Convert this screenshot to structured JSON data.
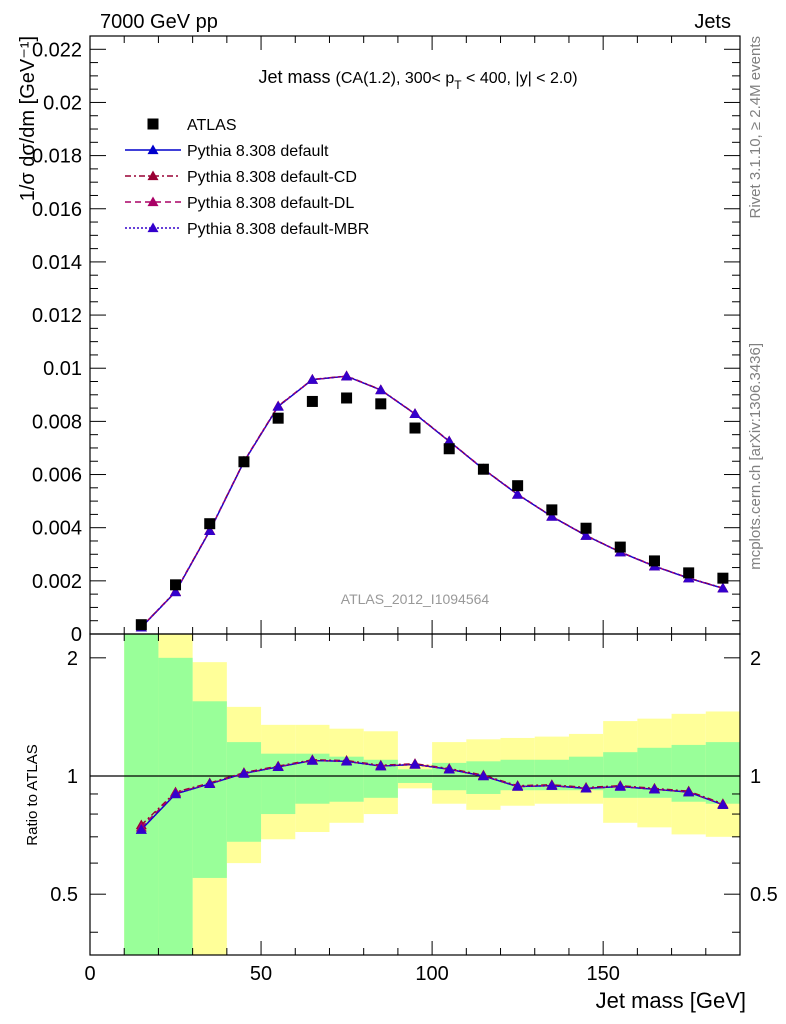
{
  "header": {
    "left": "7000 GeV pp",
    "right": "Jets"
  },
  "side_labels": {
    "rivet": "Rivet 3.1.10, ≥ 2.4M events",
    "source": "mcplots.cern.ch [arXiv:1306.3436]"
  },
  "chart_data": {
    "type": "line",
    "title": {
      "main": "Jet mass",
      "detail_pre": "(CA(1.2), 300< p",
      "detail_sub": "T",
      "detail_post": " < 400, |y| < 2.0)"
    },
    "analysis_id": "ATLAS_2012_I1094564",
    "xlabel": "Jet mass [GeV]",
    "ylabel_main": "1/σ dσ/dm [GeV⁻¹]",
    "ylabel_ratio": "Ratio to ATLAS",
    "xlim": [
      0,
      190
    ],
    "ylim_main": [
      0,
      0.0225
    ],
    "ylim_ratio": [
      0.35,
      2.3
    ],
    "xticks": [
      "0",
      "50",
      "100",
      "150"
    ],
    "yticks_main": [
      "0",
      "0.002",
      "0.004",
      "0.006",
      "0.008",
      "0.01",
      "0.012",
      "0.014",
      "0.016",
      "0.018",
      "0.02",
      "0.022"
    ],
    "yticks_ratio": [
      "0.5",
      "1",
      "2"
    ],
    "legend_position": "top-left",
    "x": [
      15,
      25,
      35,
      45,
      55,
      65,
      75,
      85,
      95,
      105,
      115,
      125,
      135,
      145,
      155,
      165,
      175,
      185
    ],
    "bin_edges": [
      10,
      20,
      30,
      40,
      50,
      60,
      70,
      80,
      90,
      100,
      110,
      120,
      130,
      140,
      150,
      160,
      170,
      180,
      190
    ],
    "data": {
      "name": "ATLAS",
      "values": [
        0.00035,
        0.00185,
        0.00415,
        0.00648,
        0.00812,
        0.00875,
        0.00888,
        0.00866,
        0.00775,
        0.00697,
        0.0062,
        0.00558,
        0.00467,
        0.00398,
        0.00327,
        0.00275,
        0.0023,
        0.0021
      ]
    },
    "series": [
      {
        "name": "Pythia 8.308 default",
        "color": "#0000cc",
        "style": "solid",
        "values": [
          0.00025,
          0.00158,
          0.00388,
          0.00648,
          0.00856,
          0.00957,
          0.0097,
          0.00918,
          0.00828,
          0.00725,
          0.0062,
          0.00525,
          0.00442,
          0.0037,
          0.00308,
          0.00255,
          0.0021,
          0.00172
        ],
        "ratio": [
          0.73,
          0.9,
          0.955,
          1.015,
          1.055,
          1.095,
          1.09,
          1.06,
          1.07,
          1.04,
          1.0,
          0.94,
          0.945,
          0.93,
          0.94,
          0.925,
          0.91,
          0.845
        ]
      },
      {
        "name": "Pythia 8.308 default-CD",
        "color": "#990033",
        "style": "dashdot",
        "values": [
          0.00026,
          0.0016,
          0.0039,
          0.0065,
          0.00858,
          0.00958,
          0.00971,
          0.00919,
          0.00829,
          0.00726,
          0.00621,
          0.00526,
          0.00443,
          0.00371,
          0.00309,
          0.00256,
          0.00211,
          0.00173
        ],
        "ratio": [
          0.75,
          0.91,
          0.96,
          1.02,
          1.06,
          1.1,
          1.095,
          1.065,
          1.075,
          1.045,
          1.005,
          0.945,
          0.95,
          0.935,
          0.945,
          0.93,
          0.915,
          0.85
        ]
      },
      {
        "name": "Pythia 8.308 default-DL",
        "color": "#aa0066",
        "style": "dashed",
        "values": [
          0.00026,
          0.00159,
          0.00389,
          0.00649,
          0.00857,
          0.00957,
          0.0097,
          0.00918,
          0.00828,
          0.00725,
          0.0062,
          0.00525,
          0.00442,
          0.0037,
          0.00308,
          0.00255,
          0.0021,
          0.00172
        ],
        "ratio": [
          0.74,
          0.905,
          0.955,
          1.015,
          1.055,
          1.095,
          1.09,
          1.06,
          1.07,
          1.04,
          1.0,
          0.94,
          0.945,
          0.93,
          0.94,
          0.925,
          0.91,
          0.845
        ]
      },
      {
        "name": "Pythia 8.308 default-MBR",
        "color": "#3300cc",
        "style": "dotted",
        "values": [
          0.00025,
          0.00158,
          0.00388,
          0.00648,
          0.00856,
          0.00957,
          0.0097,
          0.00918,
          0.00828,
          0.00725,
          0.0062,
          0.00525,
          0.00442,
          0.0037,
          0.00308,
          0.00255,
          0.0021,
          0.00172
        ],
        "ratio": [
          0.73,
          0.9,
          0.955,
          1.015,
          1.055,
          1.095,
          1.09,
          1.06,
          1.07,
          1.04,
          1.0,
          0.94,
          0.945,
          0.93,
          0.94,
          0.925,
          0.91,
          0.845
        ]
      }
    ],
    "bands": {
      "stat": {
        "color": "#99ff99",
        "lo": [
          0.35,
          0.35,
          0.55,
          0.68,
          0.8,
          0.85,
          0.86,
          0.88,
          0.96,
          0.92,
          0.9,
          0.92,
          0.92,
          0.92,
          0.88,
          0.88,
          0.86,
          0.85
        ],
        "hi": [
          2.3,
          2.0,
          1.55,
          1.22,
          1.14,
          1.14,
          1.12,
          1.1,
          1.04,
          1.08,
          1.09,
          1.1,
          1.1,
          1.12,
          1.15,
          1.18,
          1.2,
          1.22
        ]
      },
      "total": {
        "color": "#ffff99",
        "lo": [
          0.35,
          0.35,
          0.35,
          0.6,
          0.69,
          0.72,
          0.76,
          0.8,
          0.93,
          0.85,
          0.82,
          0.84,
          0.85,
          0.85,
          0.76,
          0.74,
          0.71,
          0.7
        ],
        "hi": [
          2.3,
          2.3,
          1.95,
          1.5,
          1.35,
          1.35,
          1.32,
          1.3,
          1.07,
          1.22,
          1.24,
          1.25,
          1.26,
          1.28,
          1.38,
          1.4,
          1.44,
          1.46
        ]
      }
    }
  }
}
